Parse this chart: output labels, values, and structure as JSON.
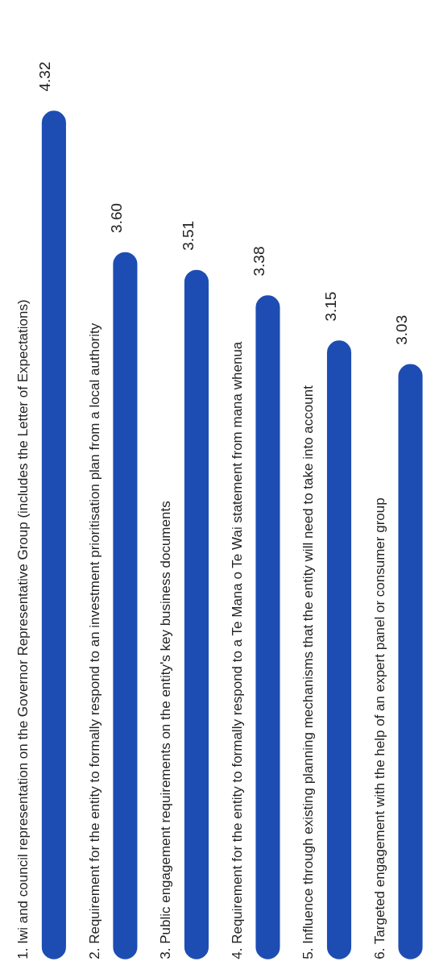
{
  "chart_data": {
    "type": "bar",
    "categories": [
      "1. Iwi and council representation on the Governor Representative Group (includes the Letter of Expectations)",
      "2. Requirement for the entity to formally respond to an investment prioritisation plan from a local authority",
      "3. Public engagement requirements on the entity's key business documents",
      "4. Requirement for the entity to formally respond to a Te Mana o Te Wai statement from mana whenua",
      "5. Influence through existing planning mechanisms that the entity will need to take into account",
      "6. Targeted engagement with the help of an expert panel or consumer group"
    ],
    "values": [
      4.32,
      3.6,
      3.51,
      3.38,
      3.15,
      3.03
    ],
    "value_labels": [
      "4.32",
      "3.60",
      "3.51",
      "3.38",
      "3.15",
      "3.03"
    ],
    "color": "#1d4db3"
  }
}
